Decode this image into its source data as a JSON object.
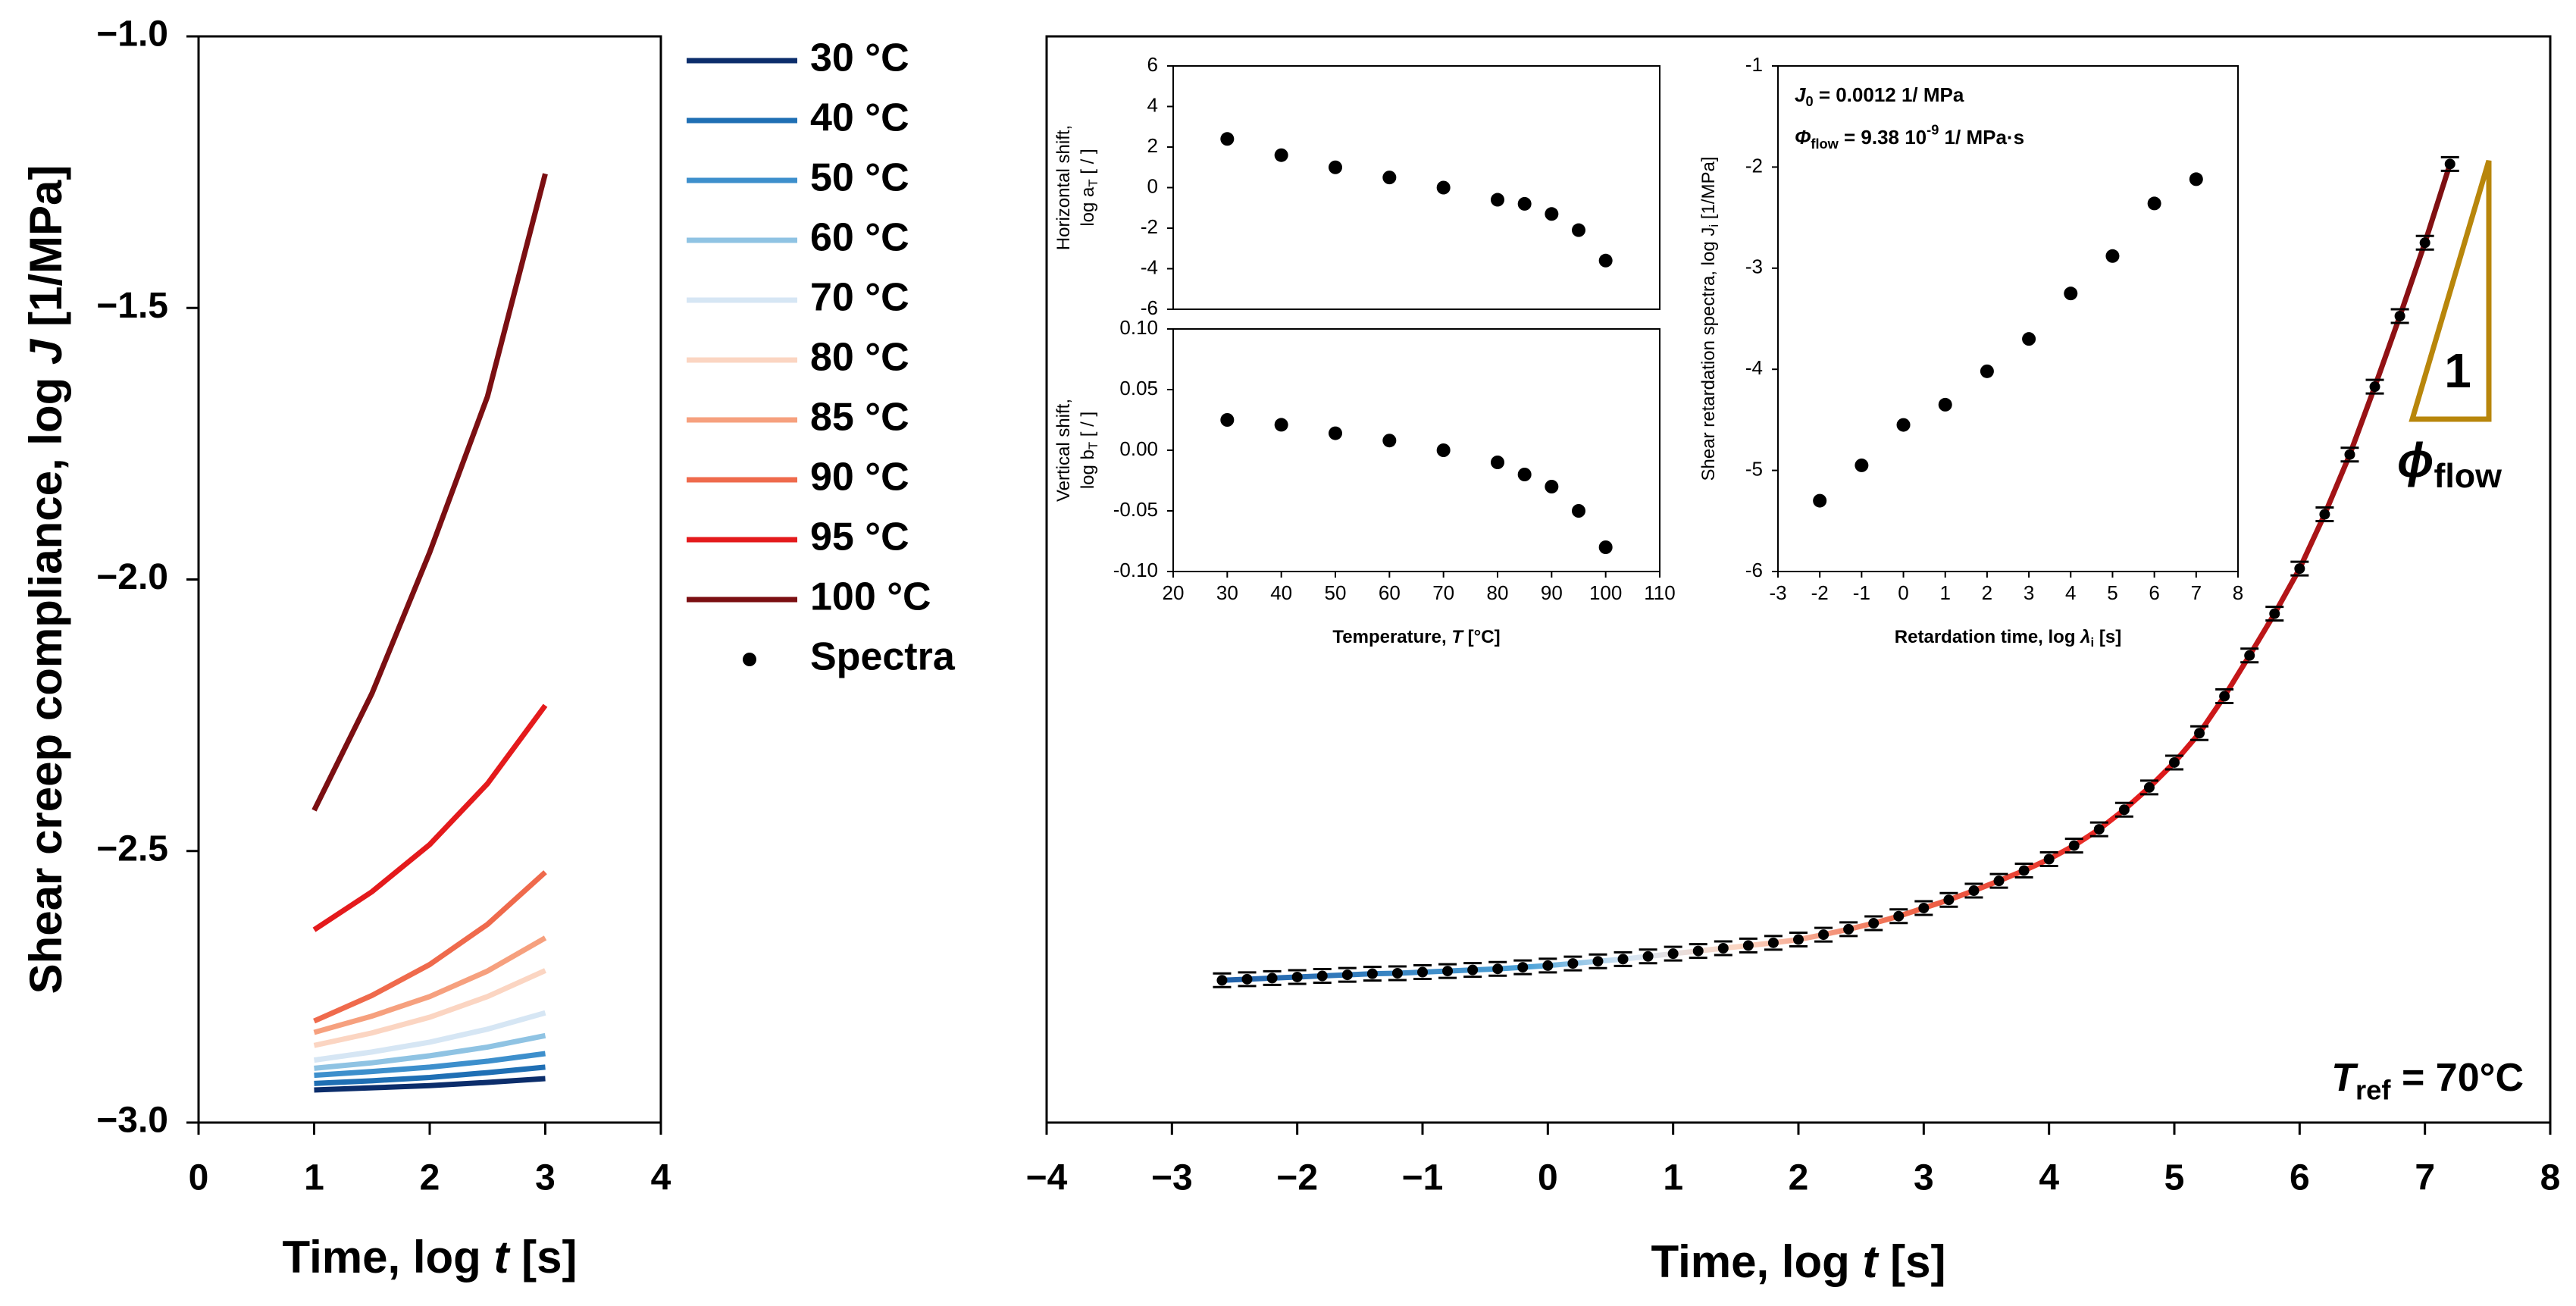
{
  "chart_data": [
    {
      "type": "line",
      "xlabel": [
        [
          {
            "text": "Time, log "
          },
          {
            "text": "t",
            "style": "italic"
          },
          {
            "text": " [s]"
          }
        ]
      ],
      "ylabel": [
        [
          {
            "text": "Shear creep compliance, log "
          },
          {
            "text": "J",
            "style": "italic"
          },
          {
            "text": " [1/MPa]"
          }
        ]
      ],
      "x": [
        1,
        1.5,
        2,
        2.5,
        3
      ],
      "xlim": [
        0,
        4
      ],
      "xticks": [
        0,
        1,
        2,
        3,
        4
      ],
      "ylim": [
        -3,
        -1
      ],
      "yticks": [
        {
          "value": -3,
          "label": "−3.0"
        },
        {
          "value": -2.5,
          "label": "−2.5"
        },
        {
          "value": -2,
          "label": "−2.0"
        },
        {
          "value": -1.5,
          "label": "−1.5"
        },
        {
          "value": -1,
          "label": "−1.0"
        }
      ],
      "series": [
        {
          "name": "30 °C",
          "color": "#0b2d6b",
          "values": [
            -2.94,
            -2.936,
            -2.932,
            -2.926,
            -2.919
          ]
        },
        {
          "name": "40 °C",
          "color": "#1f6fb4",
          "values": [
            -2.928,
            -2.923,
            -2.917,
            -2.908,
            -2.898
          ]
        },
        {
          "name": "50 °C",
          "color": "#3d8fcc",
          "values": [
            -2.913,
            -2.906,
            -2.898,
            -2.887,
            -2.873
          ]
        },
        {
          "name": "60 °C",
          "color": "#8fc3e3",
          "values": [
            -2.9,
            -2.89,
            -2.877,
            -2.861,
            -2.84
          ]
        },
        {
          "name": "70 °C",
          "color": "#d6e6f4",
          "values": [
            -2.885,
            -2.87,
            -2.852,
            -2.828,
            -2.798
          ]
        },
        {
          "name": "80 °C",
          "color": "#fbd5c2",
          "values": [
            -2.858,
            -2.835,
            -2.806,
            -2.768,
            -2.72
          ]
        },
        {
          "name": "85 °C",
          "color": "#f6a07e",
          "values": [
            -2.834,
            -2.804,
            -2.768,
            -2.721,
            -2.66
          ]
        },
        {
          "name": "90 °C",
          "color": "#ef6a4c",
          "values": [
            -2.813,
            -2.766,
            -2.709,
            -2.635,
            -2.539
          ]
        },
        {
          "name": "95 °C",
          "color": "#e41a1c",
          "values": [
            -2.645,
            -2.575,
            -2.488,
            -2.376,
            -2.232
          ]
        },
        {
          "name": "100 °C",
          "color": "#7b0f12",
          "values": [
            -2.425,
            -2.21,
            -1.95,
            -1.663,
            -1.253
          ]
        }
      ]
    },
    {
      "type": "scatter",
      "xlabel": [
        [
          {
            "text": "Time, log "
          },
          {
            "text": "t",
            "style": "italic"
          },
          {
            "text": " [s]"
          }
        ]
      ],
      "x": [
        -2.6,
        -2.4,
        -2.2,
        -2.0,
        -1.8,
        -1.6,
        -1.4,
        -1.2,
        -1.0,
        -0.8,
        -0.6,
        -0.4,
        -0.2,
        0,
        0.2,
        0.4,
        0.6,
        0.8,
        1.0,
        1.2,
        1.4,
        1.6,
        1.8,
        2.0,
        2.2,
        2.4,
        2.6,
        2.8,
        3.0,
        3.2,
        3.4,
        3.6,
        3.8,
        4.0,
        4.2,
        4.4,
        4.6,
        4.8,
        5.0,
        5.2,
        5.4,
        5.6,
        5.8,
        6.0,
        6.2,
        6.4,
        6.6,
        6.8,
        7.0,
        7.2
      ],
      "xlim": [
        -4,
        8
      ],
      "xticks": [
        {
          "value": -4,
          "label": "−4"
        },
        {
          "value": -3,
          "label": "−3"
        },
        {
          "value": -2,
          "label": "−2"
        },
        {
          "value": -1,
          "label": "−1"
        },
        0,
        1,
        2,
        3,
        4,
        5,
        6,
        7,
        8
      ],
      "ylim": [
        -3,
        -1
      ],
      "series": [
        {
          "name": "Spectra",
          "color": "#000000",
          "values": [
            -2.738,
            -2.736,
            -2.734,
            -2.732,
            -2.73,
            -2.728,
            -2.726,
            -2.725,
            -2.723,
            -2.721,
            -2.719,
            -2.717,
            -2.714,
            -2.711,
            -2.707,
            -2.703,
            -2.699,
            -2.694,
            -2.689,
            -2.684,
            -2.679,
            -2.674,
            -2.669,
            -2.663,
            -2.654,
            -2.644,
            -2.633,
            -2.62,
            -2.605,
            -2.59,
            -2.573,
            -2.555,
            -2.536,
            -2.515,
            -2.49,
            -2.46,
            -2.424,
            -2.383,
            -2.337,
            -2.283,
            -2.215,
            -2.14,
            -2.063,
            -1.98,
            -1.88,
            -1.77,
            -1.645,
            -1.515,
            -1.38,
            -1.235
          ]
        }
      ],
      "slope_color": "#b8860b",
      "slope_label": [
        {
          "text": "1"
        }
      ],
      "slope_symbol": [
        {
          "text": "ϕ",
          "style": "italic"
        },
        {
          "text": "flow",
          "style": "sub"
        }
      ],
      "reference": [
        {
          "text": "T",
          "style": "italic"
        },
        {
          "text": "ref",
          "style": "sub"
        },
        {
          "text": " = 70°C"
        }
      ]
    },
    {
      "type": "scatter",
      "ylabel": [
        [
          {
            "text": "Horizontal shift,"
          }
        ],
        [
          {
            "text": "log a"
          },
          {
            "text": "T",
            "style": "sub"
          },
          {
            "text": " [ / ]"
          }
        ]
      ],
      "x": [
        30,
        40,
        50,
        60,
        70,
        80,
        85,
        90,
        95,
        100
      ],
      "xlim": [
        20,
        110
      ],
      "ylim": [
        -6,
        6
      ],
      "yticks": [
        -6,
        -4,
        -2,
        0,
        2,
        4,
        6
      ],
      "series": [
        {
          "color": "#000000",
          "values": [
            2.4,
            1.6,
            1.0,
            0.5,
            0,
            -0.6,
            -0.8,
            -1.3,
            -2.1,
            -3.6
          ]
        }
      ]
    },
    {
      "type": "scatter",
      "xlabel": [
        [
          {
            "text": "Temperature, "
          },
          {
            "text": "T",
            "style": "italic"
          },
          {
            "text": " [°C]"
          }
        ]
      ],
      "ylabel": [
        [
          {
            "text": "Vertical shift,"
          }
        ],
        [
          {
            "text": "log b"
          },
          {
            "text": "T",
            "style": "sub"
          },
          {
            "text": " [ / ]"
          }
        ]
      ],
      "x": [
        30,
        40,
        50,
        60,
        70,
        80,
        85,
        90,
        95,
        100
      ],
      "xlim": [
        20,
        110
      ],
      "xticks": [
        20,
        30,
        40,
        50,
        60,
        70,
        80,
        90,
        100,
        110
      ],
      "ylim": [
        -0.1,
        0.1
      ],
      "yticks": [
        {
          "value": -0.1,
          "label": "-0.10"
        },
        {
          "value": -0.05,
          "label": "-0.05"
        },
        {
          "value": 0,
          "label": "0.00"
        },
        {
          "value": 0.05,
          "label": "0.05"
        },
        {
          "value": 0.1,
          "label": "0.10"
        }
      ],
      "series": [
        {
          "color": "#000000",
          "values": [
            0.025,
            0.021,
            0.014,
            0.008,
            0.0,
            -0.01,
            -0.02,
            -0.03,
            -0.05,
            -0.08
          ]
        }
      ]
    },
    {
      "type": "scatter",
      "xlabel": [
        [
          {
            "text": "Retardation time, log "
          },
          {
            "text": "λ",
            "style": "italic"
          },
          {
            "text": "i",
            "style": "sub"
          },
          {
            "text": " [s]"
          }
        ]
      ],
      "ylabel": [
        [
          {
            "text": "Shear retardation spectra, log J"
          },
          {
            "text": "i",
            "style": "sub"
          },
          {
            "text": " [1/MPa]"
          }
        ]
      ],
      "x": [
        -2,
        -1,
        0,
        1,
        2,
        3,
        4,
        5,
        6,
        7
      ],
      "xlim": [
        -3,
        8
      ],
      "xticks": [
        -3,
        -2,
        -1,
        0,
        1,
        2,
        3,
        4,
        5,
        6,
        7,
        8
      ],
      "ylim": [
        -6,
        -1
      ],
      "yticks": [
        -6,
        -5,
        -4,
        -3,
        -2,
        -1
      ],
      "series": [
        {
          "color": "#000000",
          "values": [
            -5.3,
            -4.95,
            -4.55,
            -4.35,
            -4.02,
            -3.7,
            -3.25,
            -2.88,
            -2.36,
            -2.12
          ]
        }
      ],
      "annotations": [
        [
          {
            "text": "J",
            "style": "italic"
          },
          {
            "text": "0",
            "style": "sub"
          },
          {
            "text": " = 0.0012 1/ MPa"
          }
        ],
        [
          {
            "text": "Φ",
            "style": "italic"
          },
          {
            "text": "flow",
            "style": "sub"
          },
          {
            "text": " = 9.38 10"
          },
          {
            "text": "-9",
            "style": "sup"
          },
          {
            "text": " 1/ MPa·s"
          }
        ]
      ]
    }
  ]
}
